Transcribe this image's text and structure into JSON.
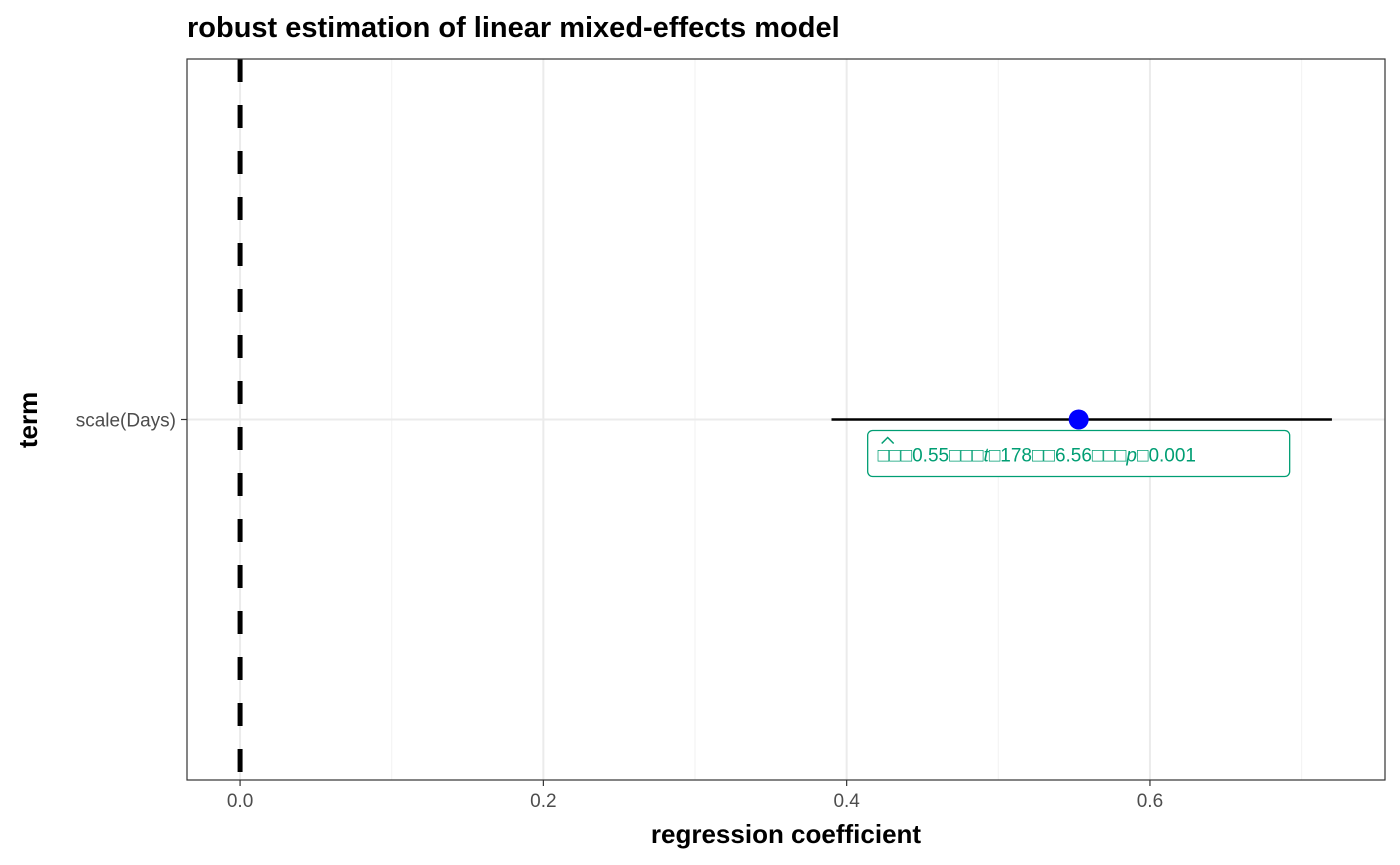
{
  "chart_data": {
    "type": "forest",
    "title": "robust estimation of linear mixed-effects model",
    "xlabel": "regression coefficient",
    "ylabel": "term",
    "xlim": [
      -0.035,
      0.755
    ],
    "x_ticks": [
      0.0,
      0.2,
      0.4,
      0.6
    ],
    "x_tick_labels": [
      "0.0",
      "0.2",
      "0.4",
      "0.6"
    ],
    "x_minor_grid": [
      0.1,
      0.3,
      0.5,
      0.7
    ],
    "grid": true,
    "reference_line": {
      "x": 0,
      "style": "dashed"
    },
    "terms": [
      {
        "term": "scale(Days)",
        "estimate": 0.553,
        "conf_low": 0.39,
        "conf_high": 0.72,
        "point_color": "#0000FF",
        "label": "β̂ = 0.55, t(178) = 6.56, p < 0.001",
        "label_parts": [
          "□□",
          "□",
          "0.55□□□",
          "t",
          "□178□",
          "□",
          "6.56□□□",
          "p",
          "□",
          "0.001"
        ]
      }
    ],
    "colors": {
      "label": "#009E73",
      "point": "#0000FF",
      "errorbar": "#000000",
      "panel_border": "#333333",
      "grid_major": "#ebebeb",
      "grid_minor": "#f4f4f4"
    }
  }
}
